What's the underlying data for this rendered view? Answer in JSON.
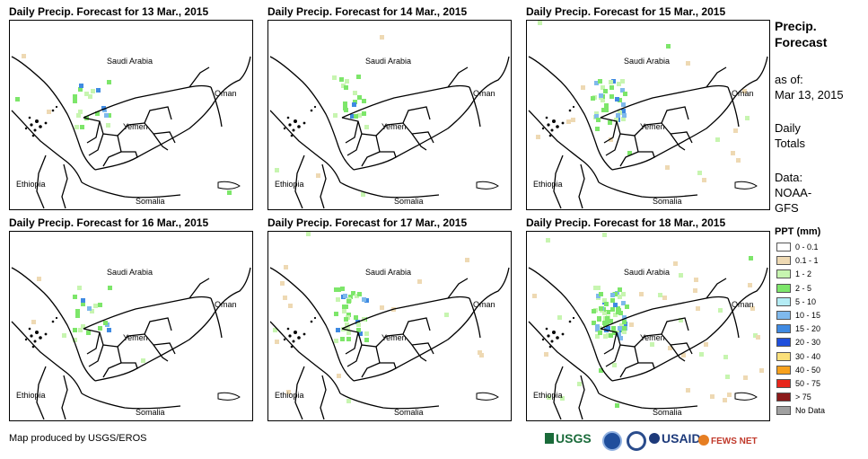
{
  "panels": [
    {
      "title": "Daily Precip. Forecast for 13 Mar., 2015",
      "precip_level": "low"
    },
    {
      "title": "Daily Precip. Forecast for 14 Mar., 2015",
      "precip_level": "low"
    },
    {
      "title": "Daily Precip. Forecast for 15 Mar., 2015",
      "precip_level": "moderate"
    },
    {
      "title": "Daily Precip. Forecast for 16 Mar., 2015",
      "precip_level": "low"
    },
    {
      "title": "Daily Precip. Forecast for 17 Mar., 2015",
      "precip_level": "moderate"
    },
    {
      "title": "Daily Precip. Forecast for 18 Mar., 2015",
      "precip_level": "high"
    }
  ],
  "map_labels": {
    "saudi": "Saudi Arabia",
    "oman": "Oman",
    "yemen": "Yemen",
    "ethiopia": "Ethiopia",
    "somalia": "Somalia"
  },
  "sidebar": {
    "title_line1": "Precip.",
    "title_line2": "Forecast",
    "asof_line1": "as of:",
    "asof_line2": "Mar 13, 2015",
    "daily_line1": "Daily",
    "daily_line2": "Totals",
    "data_line1": "Data:",
    "data_line2": "NOAA-",
    "data_line3": "GFS"
  },
  "legend": {
    "title": "PPT (mm)",
    "items": [
      {
        "label": "0 - 0.1",
        "color": "#ffffff"
      },
      {
        "label": "0.1 - 1",
        "color": "#eed9b3"
      },
      {
        "label": "1 - 2",
        "color": "#c7f5b0"
      },
      {
        "label": "2 - 5",
        "color": "#7de66a"
      },
      {
        "label": "5 - 10",
        "color": "#b4ecf4"
      },
      {
        "label": "10 - 15",
        "color": "#7fb9ec"
      },
      {
        "label": "15 - 20",
        "color": "#3f8ae2"
      },
      {
        "label": "20 - 30",
        "color": "#1f4fdc"
      },
      {
        "label": "30 - 40",
        "color": "#fbe07a"
      },
      {
        "label": "40 - 50",
        "color": "#f7a11d"
      },
      {
        "label": "50 - 75",
        "color": "#e8261b"
      },
      {
        "label": "> 75",
        "color": "#8b1a1a"
      },
      {
        "label": "No Data",
        "color": "#a0a0a0"
      }
    ]
  },
  "credit": "Map produced by USGS/EROS",
  "logos": {
    "usgs": "USGS",
    "usaid": "USAID",
    "fewsnet": "FEWS NET"
  }
}
